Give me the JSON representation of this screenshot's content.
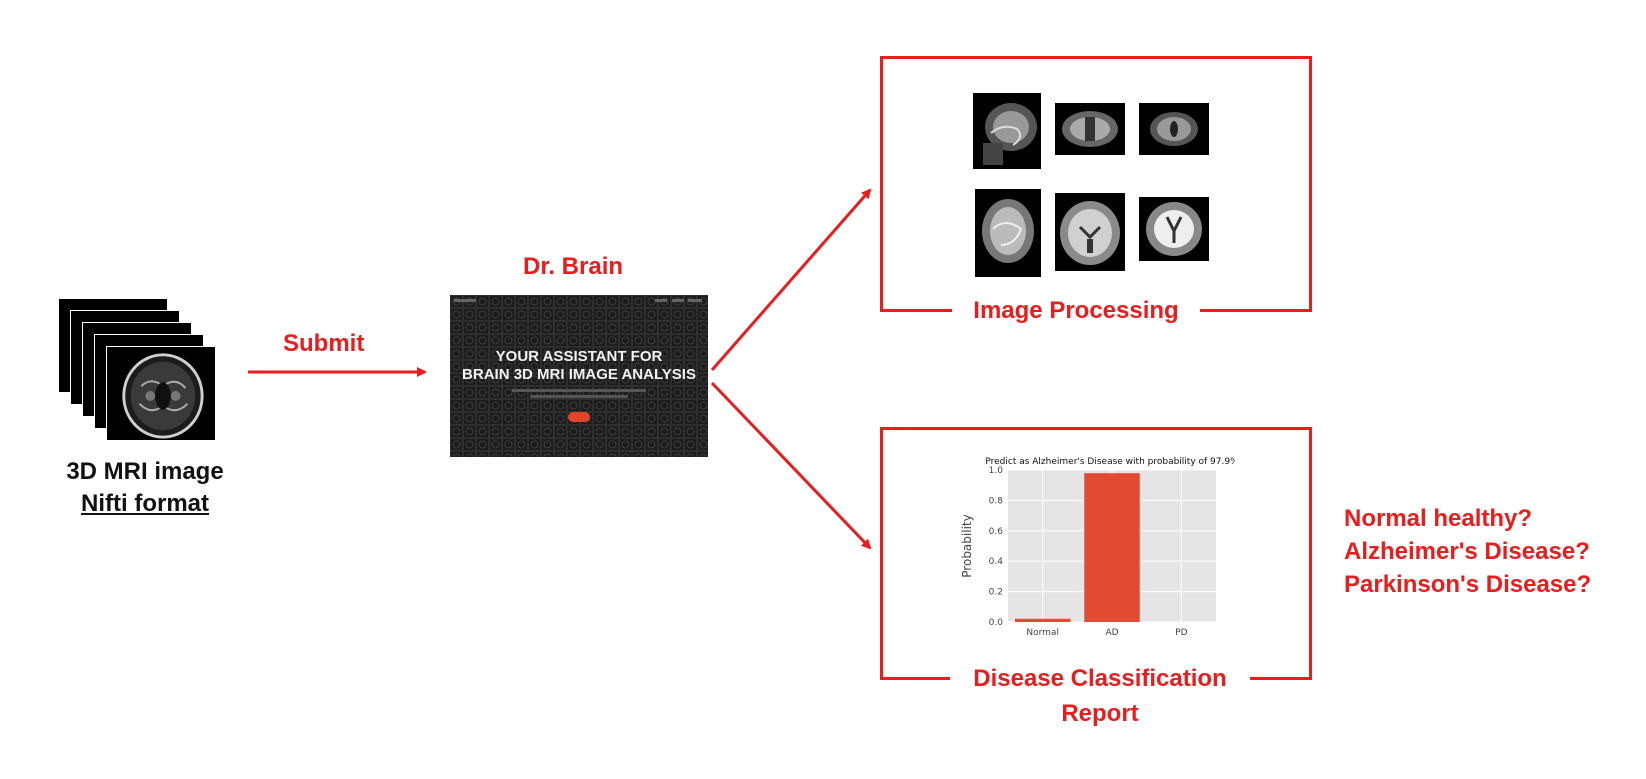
{
  "input": {
    "line1": "3D MRI image",
    "line2": "Nifti format"
  },
  "arrow_label": "Submit",
  "app": {
    "name": "Dr. Brain",
    "headline_line1": "YOUR ASSISTANT FOR",
    "headline_line2": "BRAIN 3D MRI IMAGE ANALYSIS"
  },
  "processing": {
    "label": "Image Processing"
  },
  "classification": {
    "label_line1": "Disease Classification",
    "label_line2": "Report"
  },
  "questions": [
    "Normal healthy?",
    "Alzheimer's Disease?",
    "Parkinson's Disease?"
  ],
  "colors": {
    "accent": "#ea1c1c",
    "bar": "#e24a33",
    "plot_bg": "#e5e5e5"
  },
  "chart_data": {
    "type": "bar",
    "title": "Predict as Alzheimer's Disease with probability of 97.9%",
    "categories": [
      "Normal",
      "AD",
      "PD"
    ],
    "values": [
      0.021,
      0.979,
      0.0
    ],
    "ylabel": "Probability",
    "xlabel": "",
    "ylim": [
      0,
      1.0
    ],
    "yticks": [
      "0.0",
      "0.2",
      "0.4",
      "0.6",
      "0.8",
      "1.0"
    ],
    "grid": true
  }
}
